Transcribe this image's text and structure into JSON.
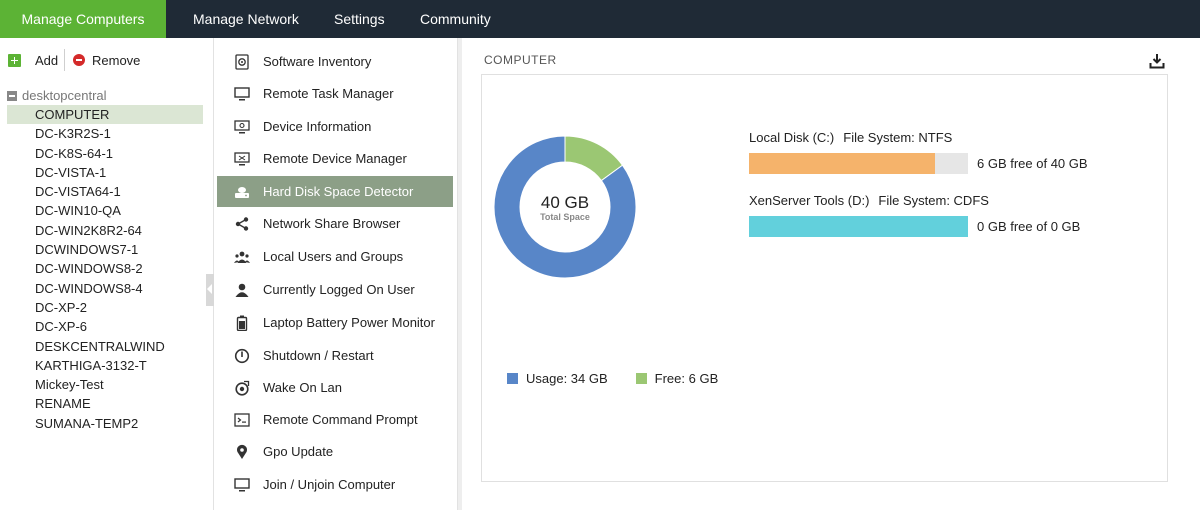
{
  "nav": {
    "tabs": [
      "Manage Computers",
      "Manage Network",
      "Settings",
      "Community"
    ],
    "active_color": "#5cb335",
    "bg_color": "#1f2a36"
  },
  "tree": {
    "toolbar": {
      "add": "Add",
      "remove": "Remove"
    },
    "root": "desktopcentral",
    "items": [
      "COMPUTER",
      "DC-K3R2S-1",
      "DC-K8S-64-1",
      "DC-VISTA-1",
      "DC-VISTA64-1",
      "DC-WIN10-QA",
      "DC-WIN2K8R2-64",
      "DCWINDOWS7-1",
      "DC-WINDOWS8-2",
      "DC-WINDOWS8-4",
      "DC-XP-2",
      "DC-XP-6",
      "DESKCENTRALWIND",
      "KARTHIGA-3132-T",
      "Mickey-Test",
      "RENAME",
      "SUMANA-TEMP2"
    ],
    "selected": "COMPUTER"
  },
  "menu": {
    "items": [
      {
        "label": "Software Inventory",
        "icon": "disc-icon"
      },
      {
        "label": "Remote Task Manager",
        "icon": "monitor-icon"
      },
      {
        "label": "Device Information",
        "icon": "device-info-icon"
      },
      {
        "label": "Remote Device Manager",
        "icon": "remote-monitor-icon"
      },
      {
        "label": "Hard Disk Space Detector",
        "icon": "hard-disk-icon"
      },
      {
        "label": "Network Share Browser",
        "icon": "share-icon"
      },
      {
        "label": "Local Users and Groups",
        "icon": "users-icon"
      },
      {
        "label": "Currently Logged On User",
        "icon": "user-icon"
      },
      {
        "label": "Laptop Battery Power Monitor",
        "icon": "battery-icon"
      },
      {
        "label": "Shutdown / Restart",
        "icon": "power-icon"
      },
      {
        "label": "Wake On Lan",
        "icon": "wake-icon"
      },
      {
        "label": "Remote Command Prompt",
        "icon": "terminal-icon"
      },
      {
        "label": "Gpo Update",
        "icon": "location-pin-icon"
      },
      {
        "label": "Join / Unjoin Computer",
        "icon": "computer-icon"
      }
    ],
    "active": "Hard Disk Space Detector",
    "active_color": "#8c9f87"
  },
  "main": {
    "title": "COMPUTER",
    "donut": {
      "total_value": "40 GB",
      "total_label": "Total Space",
      "usage_gb": 34,
      "free_gb": 6,
      "usage_color": "#5886c8",
      "free_color": "#9bc773"
    },
    "disks": [
      {
        "name": "Local Disk (C:)",
        "fs": "File System: NTFS",
        "free_text": "6 GB free of 40 GB",
        "used_fraction": 0.85,
        "color": "#f5b36b"
      },
      {
        "name": "XenServer Tools (D:)",
        "fs": "File System: CDFS",
        "free_text": "0 GB free of 0 GB",
        "used_fraction": 1.0,
        "color": "#62d0dc"
      }
    ],
    "legend": [
      {
        "label": "Usage: 34 GB",
        "color": "#5886c8"
      },
      {
        "label": "Free: 6 GB",
        "color": "#9bc773"
      }
    ]
  }
}
